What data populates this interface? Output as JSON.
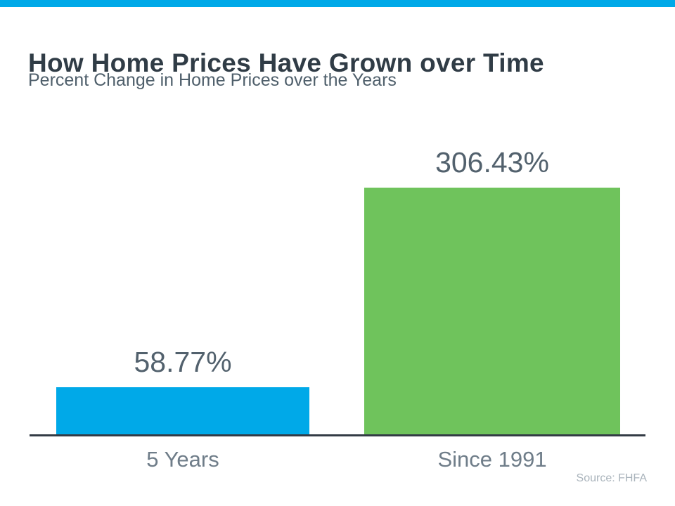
{
  "page": {
    "background": "#FFFFFF",
    "accent_bar_color": "#00A9E8"
  },
  "header": {
    "title": "How Home Prices Have Grown over Time",
    "subtitle": "Percent Change in Home Prices over the Years"
  },
  "chart_data": {
    "type": "bar",
    "title": "How Home Prices Have Grown over Time",
    "subtitle": "Percent Change in Home Prices over the Years",
    "categories": [
      "5 Years",
      "Since 1991"
    ],
    "values": [
      58.77,
      306.43
    ],
    "value_labels": [
      "58.77%",
      "306.43%"
    ],
    "series_colors": [
      "#00A9E8",
      "#6FC35C"
    ],
    "ylim": [
      0,
      320
    ],
    "grid": false,
    "legend": "none",
    "axis_color": "#333B45",
    "annotations": [
      "Source: FHFA"
    ]
  },
  "footer": {
    "source_label": "Source: FHFA"
  }
}
